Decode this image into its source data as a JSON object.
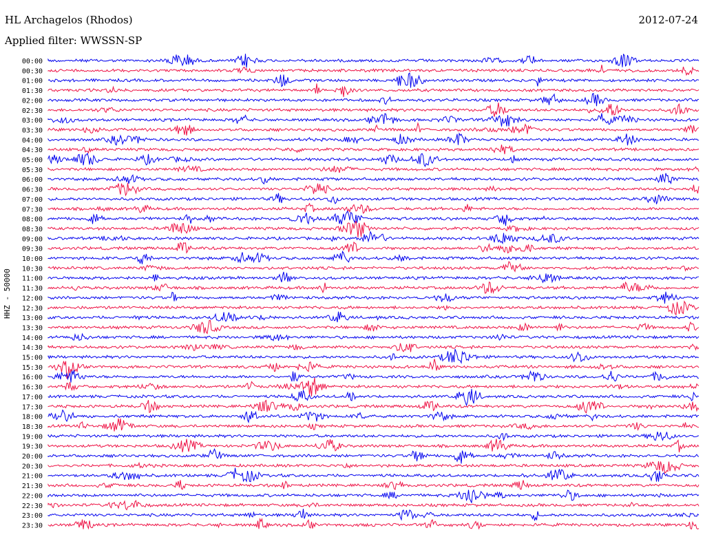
{
  "header": {
    "station": "HL Archagelos (Rhodos)",
    "date": "2012-07-24",
    "filter": "Applied filter: WWSSN-SP"
  },
  "chart_data": {
    "type": "line",
    "ylabel": "HHZ - 50000",
    "colors": {
      "blue": "#0000ee",
      "red": "#ee1144"
    },
    "rows": [
      {
        "label": "00:00",
        "color": "blue"
      },
      {
        "label": "00:30",
        "color": "red"
      },
      {
        "label": "01:00",
        "color": "blue"
      },
      {
        "label": "01:30",
        "color": "red"
      },
      {
        "label": "02:00",
        "color": "blue"
      },
      {
        "label": "02:30",
        "color": "red"
      },
      {
        "label": "03:00",
        "color": "blue"
      },
      {
        "label": "03:30",
        "color": "red"
      },
      {
        "label": "04:00",
        "color": "blue"
      },
      {
        "label": "04:30",
        "color": "red"
      },
      {
        "label": "05:00",
        "color": "blue"
      },
      {
        "label": "05:30",
        "color": "red"
      },
      {
        "label": "06:00",
        "color": "blue"
      },
      {
        "label": "06:30",
        "color": "red"
      },
      {
        "label": "07:00",
        "color": "blue"
      },
      {
        "label": "07:30",
        "color": "red"
      },
      {
        "label": "08:00",
        "color": "blue"
      },
      {
        "label": "08:30",
        "color": "red"
      },
      {
        "label": "09:00",
        "color": "blue"
      },
      {
        "label": "09:30",
        "color": "red"
      },
      {
        "label": "10:00",
        "color": "blue"
      },
      {
        "label": "10:30",
        "color": "red"
      },
      {
        "label": "11:00",
        "color": "blue"
      },
      {
        "label": "11:30",
        "color": "red"
      },
      {
        "label": "12:00",
        "color": "blue"
      },
      {
        "label": "12:30",
        "color": "red"
      },
      {
        "label": "13:00",
        "color": "blue"
      },
      {
        "label": "13:30",
        "color": "red"
      },
      {
        "label": "14:00",
        "color": "blue"
      },
      {
        "label": "14:30",
        "color": "red"
      },
      {
        "label": "15:00",
        "color": "blue"
      },
      {
        "label": "15:30",
        "color": "red"
      },
      {
        "label": "16:00",
        "color": "blue"
      },
      {
        "label": "16:30",
        "color": "red"
      },
      {
        "label": "17:00",
        "color": "blue"
      },
      {
        "label": "17:30",
        "color": "red"
      },
      {
        "label": "18:00",
        "color": "blue"
      },
      {
        "label": "18:30",
        "color": "red"
      },
      {
        "label": "19:00",
        "color": "blue"
      },
      {
        "label": "19:30",
        "color": "red"
      },
      {
        "label": "20:00",
        "color": "blue"
      },
      {
        "label": "20:30",
        "color": "red"
      },
      {
        "label": "21:00",
        "color": "blue"
      },
      {
        "label": "21:30",
        "color": "red"
      },
      {
        "label": "22:00",
        "color": "blue"
      },
      {
        "label": "22:30",
        "color": "red"
      },
      {
        "label": "23:00",
        "color": "blue"
      },
      {
        "label": "23:30",
        "color": "red"
      }
    ]
  }
}
